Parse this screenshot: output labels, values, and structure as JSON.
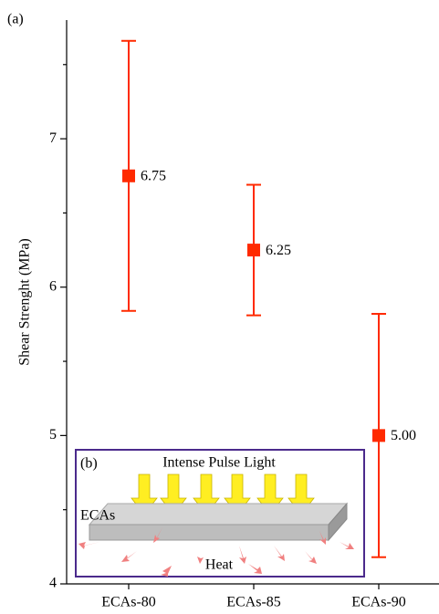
{
  "chart_data": {
    "type": "errorbar",
    "panel_label": "(a)",
    "y_label": "Shear Strenght (MPa)",
    "categories": [
      "ECAs-80",
      "ECAs-85",
      "ECAs-90"
    ],
    "values": [
      6.75,
      6.25,
      5.0
    ],
    "value_labels": [
      "6.75",
      "6.25",
      "5.00"
    ],
    "errors": [
      0.91,
      0.44,
      0.82
    ],
    "color": "#ff2a00",
    "ylim": [
      4,
      7.8
    ],
    "yticks": [
      4,
      5,
      6,
      7
    ],
    "yminor_ticks": [
      4.5,
      5.5,
      6.5,
      7.5
    ],
    "inset": {
      "panel_label": "(b)",
      "light_label": "Intense Pulse Light",
      "material_label": "ECAs",
      "heat_label": "Heat"
    }
  }
}
